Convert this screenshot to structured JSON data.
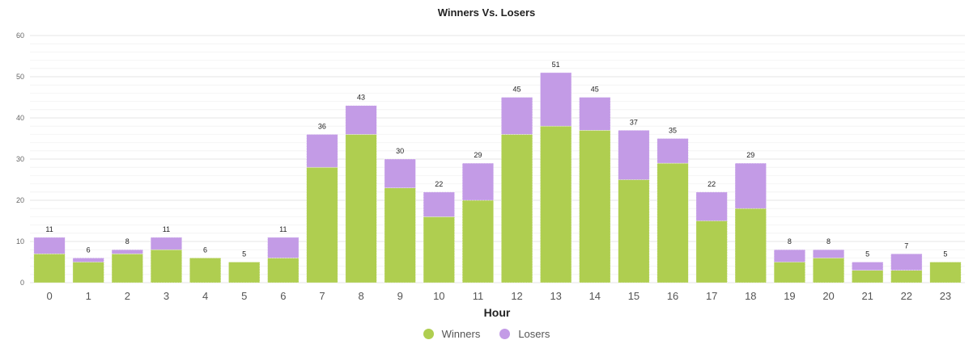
{
  "chart_data": {
    "type": "bar",
    "stacked": true,
    "title": "Winners Vs. Losers",
    "xlabel": "Hour",
    "ylabel": "",
    "ylim": [
      0,
      60
    ],
    "yticks": [
      "0",
      "10",
      "20",
      "30",
      "40",
      "50",
      "60"
    ],
    "grid": true,
    "legend_position": "bottom",
    "categories": [
      "0",
      "1",
      "2",
      "3",
      "4",
      "5",
      "6",
      "7",
      "8",
      "9",
      "10",
      "11",
      "12",
      "13",
      "14",
      "15",
      "16",
      "17",
      "18",
      "19",
      "20",
      "21",
      "22",
      "23"
    ],
    "series": [
      {
        "name": "Winners",
        "color": "#afce50",
        "values": [
          7,
          5,
          7,
          8,
          6,
          5,
          6,
          28,
          36,
          23,
          16,
          20,
          36,
          38,
          37,
          25,
          29,
          15,
          18,
          5,
          6,
          3,
          3,
          5
        ]
      },
      {
        "name": "Losers",
        "color": "#c39be6",
        "values": [
          4,
          1,
          1,
          3,
          0,
          0,
          5,
          8,
          7,
          7,
          6,
          9,
          9,
          13,
          8,
          12,
          6,
          7,
          11,
          3,
          2,
          2,
          4,
          0
        ]
      }
    ],
    "totals": [
      11,
      6,
      8,
      11,
      6,
      5,
      11,
      36,
      43,
      30,
      22,
      29,
      45,
      51,
      45,
      37,
      35,
      22,
      29,
      8,
      8,
      5,
      7,
      5
    ]
  }
}
